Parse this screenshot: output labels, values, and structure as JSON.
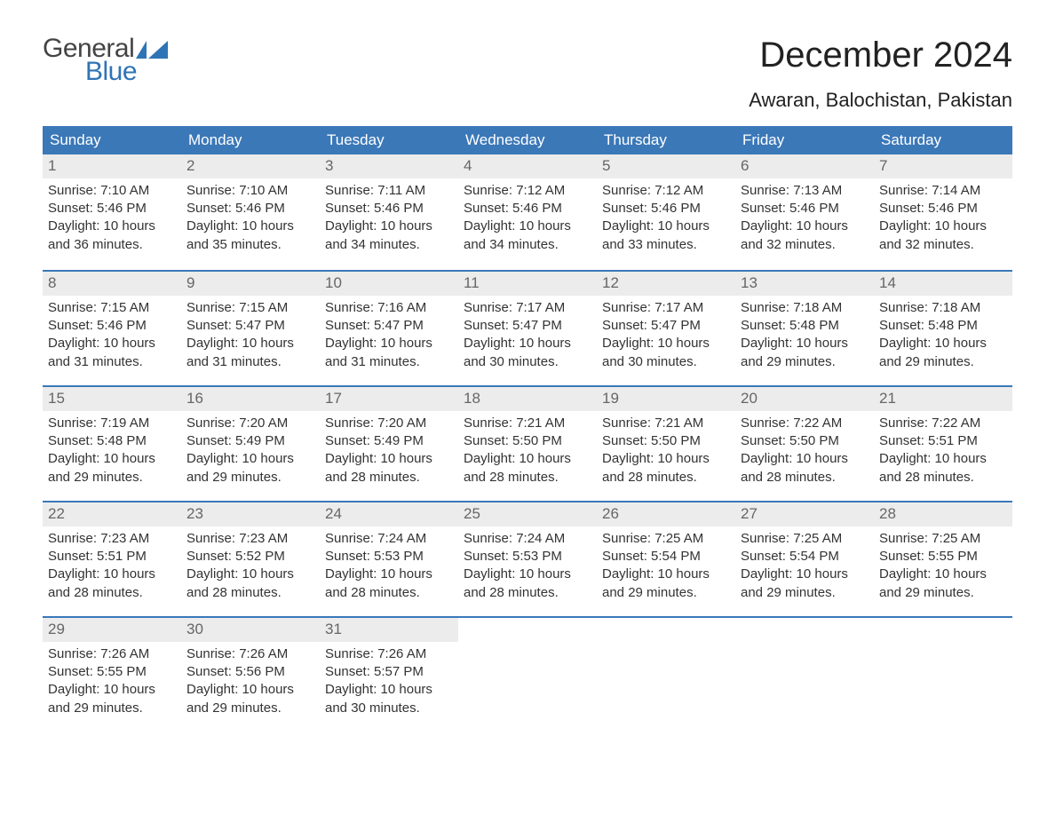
{
  "logo": {
    "text_general": "General",
    "text_blue": "Blue",
    "flag_color": "#2f74b5"
  },
  "title": "December 2024",
  "subtitle": "Awaran, Balochistan, Pakistan",
  "colors": {
    "header_bg": "#3b78b8",
    "header_text": "#ffffff",
    "daynum_bg": "#ececec",
    "daynum_text": "#666666",
    "body_text": "#333333",
    "rule": "#3b78b8",
    "background": "#ffffff"
  },
  "fonts": {
    "title_size": 40,
    "subtitle_size": 22,
    "header_size": 17,
    "body_size": 15
  },
  "day_labels": [
    "Sunday",
    "Monday",
    "Tuesday",
    "Wednesday",
    "Thursday",
    "Friday",
    "Saturday"
  ],
  "weeks": [
    [
      {
        "n": "1",
        "sunrise": "Sunrise: 7:10 AM",
        "sunset": "Sunset: 5:46 PM",
        "d1": "Daylight: 10 hours",
        "d2": "and 36 minutes."
      },
      {
        "n": "2",
        "sunrise": "Sunrise: 7:10 AM",
        "sunset": "Sunset: 5:46 PM",
        "d1": "Daylight: 10 hours",
        "d2": "and 35 minutes."
      },
      {
        "n": "3",
        "sunrise": "Sunrise: 7:11 AM",
        "sunset": "Sunset: 5:46 PM",
        "d1": "Daylight: 10 hours",
        "d2": "and 34 minutes."
      },
      {
        "n": "4",
        "sunrise": "Sunrise: 7:12 AM",
        "sunset": "Sunset: 5:46 PM",
        "d1": "Daylight: 10 hours",
        "d2": "and 34 minutes."
      },
      {
        "n": "5",
        "sunrise": "Sunrise: 7:12 AM",
        "sunset": "Sunset: 5:46 PM",
        "d1": "Daylight: 10 hours",
        "d2": "and 33 minutes."
      },
      {
        "n": "6",
        "sunrise": "Sunrise: 7:13 AM",
        "sunset": "Sunset: 5:46 PM",
        "d1": "Daylight: 10 hours",
        "d2": "and 32 minutes."
      },
      {
        "n": "7",
        "sunrise": "Sunrise: 7:14 AM",
        "sunset": "Sunset: 5:46 PM",
        "d1": "Daylight: 10 hours",
        "d2": "and 32 minutes."
      }
    ],
    [
      {
        "n": "8",
        "sunrise": "Sunrise: 7:15 AM",
        "sunset": "Sunset: 5:46 PM",
        "d1": "Daylight: 10 hours",
        "d2": "and 31 minutes."
      },
      {
        "n": "9",
        "sunrise": "Sunrise: 7:15 AM",
        "sunset": "Sunset: 5:47 PM",
        "d1": "Daylight: 10 hours",
        "d2": "and 31 minutes."
      },
      {
        "n": "10",
        "sunrise": "Sunrise: 7:16 AM",
        "sunset": "Sunset: 5:47 PM",
        "d1": "Daylight: 10 hours",
        "d2": "and 31 minutes."
      },
      {
        "n": "11",
        "sunrise": "Sunrise: 7:17 AM",
        "sunset": "Sunset: 5:47 PM",
        "d1": "Daylight: 10 hours",
        "d2": "and 30 minutes."
      },
      {
        "n": "12",
        "sunrise": "Sunrise: 7:17 AM",
        "sunset": "Sunset: 5:47 PM",
        "d1": "Daylight: 10 hours",
        "d2": "and 30 minutes."
      },
      {
        "n": "13",
        "sunrise": "Sunrise: 7:18 AM",
        "sunset": "Sunset: 5:48 PM",
        "d1": "Daylight: 10 hours",
        "d2": "and 29 minutes."
      },
      {
        "n": "14",
        "sunrise": "Sunrise: 7:18 AM",
        "sunset": "Sunset: 5:48 PM",
        "d1": "Daylight: 10 hours",
        "d2": "and 29 minutes."
      }
    ],
    [
      {
        "n": "15",
        "sunrise": "Sunrise: 7:19 AM",
        "sunset": "Sunset: 5:48 PM",
        "d1": "Daylight: 10 hours",
        "d2": "and 29 minutes."
      },
      {
        "n": "16",
        "sunrise": "Sunrise: 7:20 AM",
        "sunset": "Sunset: 5:49 PM",
        "d1": "Daylight: 10 hours",
        "d2": "and 29 minutes."
      },
      {
        "n": "17",
        "sunrise": "Sunrise: 7:20 AM",
        "sunset": "Sunset: 5:49 PM",
        "d1": "Daylight: 10 hours",
        "d2": "and 28 minutes."
      },
      {
        "n": "18",
        "sunrise": "Sunrise: 7:21 AM",
        "sunset": "Sunset: 5:50 PM",
        "d1": "Daylight: 10 hours",
        "d2": "and 28 minutes."
      },
      {
        "n": "19",
        "sunrise": "Sunrise: 7:21 AM",
        "sunset": "Sunset: 5:50 PM",
        "d1": "Daylight: 10 hours",
        "d2": "and 28 minutes."
      },
      {
        "n": "20",
        "sunrise": "Sunrise: 7:22 AM",
        "sunset": "Sunset: 5:50 PM",
        "d1": "Daylight: 10 hours",
        "d2": "and 28 minutes."
      },
      {
        "n": "21",
        "sunrise": "Sunrise: 7:22 AM",
        "sunset": "Sunset: 5:51 PM",
        "d1": "Daylight: 10 hours",
        "d2": "and 28 minutes."
      }
    ],
    [
      {
        "n": "22",
        "sunrise": "Sunrise: 7:23 AM",
        "sunset": "Sunset: 5:51 PM",
        "d1": "Daylight: 10 hours",
        "d2": "and 28 minutes."
      },
      {
        "n": "23",
        "sunrise": "Sunrise: 7:23 AM",
        "sunset": "Sunset: 5:52 PM",
        "d1": "Daylight: 10 hours",
        "d2": "and 28 minutes."
      },
      {
        "n": "24",
        "sunrise": "Sunrise: 7:24 AM",
        "sunset": "Sunset: 5:53 PM",
        "d1": "Daylight: 10 hours",
        "d2": "and 28 minutes."
      },
      {
        "n": "25",
        "sunrise": "Sunrise: 7:24 AM",
        "sunset": "Sunset: 5:53 PM",
        "d1": "Daylight: 10 hours",
        "d2": "and 28 minutes."
      },
      {
        "n": "26",
        "sunrise": "Sunrise: 7:25 AM",
        "sunset": "Sunset: 5:54 PM",
        "d1": "Daylight: 10 hours",
        "d2": "and 29 minutes."
      },
      {
        "n": "27",
        "sunrise": "Sunrise: 7:25 AM",
        "sunset": "Sunset: 5:54 PM",
        "d1": "Daylight: 10 hours",
        "d2": "and 29 minutes."
      },
      {
        "n": "28",
        "sunrise": "Sunrise: 7:25 AM",
        "sunset": "Sunset: 5:55 PM",
        "d1": "Daylight: 10 hours",
        "d2": "and 29 minutes."
      }
    ],
    [
      {
        "n": "29",
        "sunrise": "Sunrise: 7:26 AM",
        "sunset": "Sunset: 5:55 PM",
        "d1": "Daylight: 10 hours",
        "d2": "and 29 minutes."
      },
      {
        "n": "30",
        "sunrise": "Sunrise: 7:26 AM",
        "sunset": "Sunset: 5:56 PM",
        "d1": "Daylight: 10 hours",
        "d2": "and 29 minutes."
      },
      {
        "n": "31",
        "sunrise": "Sunrise: 7:26 AM",
        "sunset": "Sunset: 5:57 PM",
        "d1": "Daylight: 10 hours",
        "d2": "and 30 minutes."
      },
      {
        "empty": true
      },
      {
        "empty": true
      },
      {
        "empty": true
      },
      {
        "empty": true
      }
    ]
  ]
}
